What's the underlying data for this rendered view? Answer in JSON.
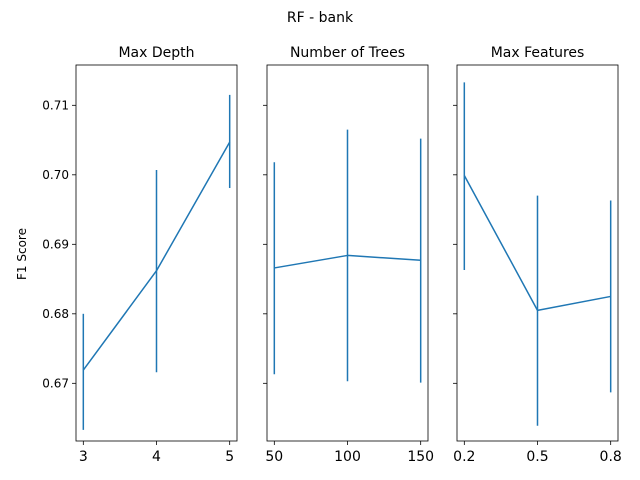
{
  "chart_data": {
    "type": "line",
    "title": "RF - bank",
    "ylabel": "F1 Score",
    "ylim": [
      0.6617,
      0.7158
    ],
    "yticks": [
      0.67,
      0.68,
      0.69,
      0.7,
      0.71
    ],
    "ytick_labels": [
      "0.67",
      "0.68",
      "0.69",
      "0.70",
      "0.71"
    ],
    "color": "#1f77b4",
    "grid": false,
    "sharey": true,
    "error_bars": true,
    "panels": [
      {
        "title": "Max Depth",
        "x": [
          3,
          4,
          5
        ],
        "xticks": [
          "3",
          "4",
          "5"
        ],
        "xlim": [
          2.9,
          5.1
        ],
        "y": [
          0.6719,
          0.6862,
          0.7047
        ],
        "err_low": [
          0.6633,
          0.6716,
          0.6981
        ],
        "err_high": [
          0.68,
          0.7007,
          0.7115
        ]
      },
      {
        "title": "Number of Trees",
        "x": [
          50,
          100,
          150
        ],
        "xticks": [
          "50",
          "100",
          "150"
        ],
        "xlim": [
          45,
          155
        ],
        "y": [
          0.6866,
          0.6884,
          0.6877
        ],
        "err_low": [
          0.6713,
          0.6703,
          0.6701
        ],
        "err_high": [
          0.7018,
          0.7065,
          0.7052
        ]
      },
      {
        "title": "Max Features",
        "x": [
          0.2,
          0.5,
          0.8
        ],
        "xticks": [
          "0.2",
          "0.5",
          "0.8"
        ],
        "xlim": [
          0.17,
          0.83
        ],
        "y": [
          0.6999,
          0.6805,
          0.6825
        ],
        "err_low": [
          0.6863,
          0.6639,
          0.6687
        ],
        "err_high": [
          0.7133,
          0.697,
          0.6963
        ]
      }
    ]
  }
}
